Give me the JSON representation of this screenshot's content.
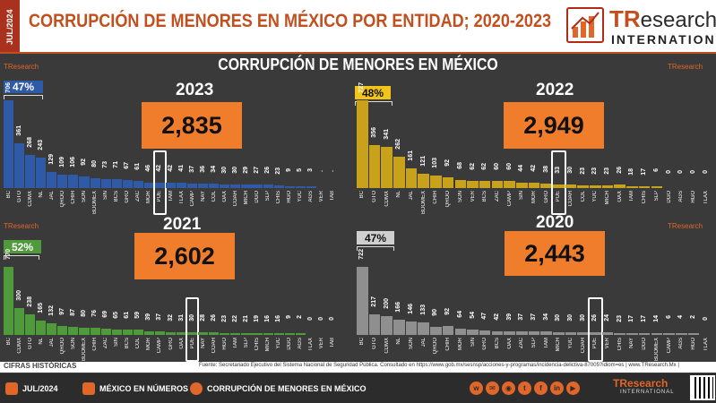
{
  "header": {
    "date_tag": "JUL/2024",
    "title": "CORRUPCIÓN DE MENORES EN MÉXICO POR ENTIDAD; 2020-2023",
    "logo_tr": "TR",
    "logo_research": "esearch",
    "logo_international": "INTERNATIONAL"
  },
  "panel_title": "CORRUPCIÓN DE MENORES EN MÉXICO",
  "mini_logo": {
    "tr": "TResearch",
    "intl": "INTERNATIONAL"
  },
  "colors": {
    "y2023": "#2f5aa8",
    "y2022": "#c9a21c",
    "y2021": "#4f9a3a",
    "y2020": "#8f8f8f",
    "accent": "#f07d2b",
    "brand": "#c2501e"
  },
  "chart_data": [
    {
      "type": "bar",
      "year": "2023",
      "total": "2,835",
      "share": "47%",
      "highlight": "PUE",
      "categories": [
        "BC",
        "GTO",
        "CDMX",
        "NL",
        "JAL",
        "QROO",
        "CHIH",
        "SON",
        "BDOMEX",
        "SIN",
        "BCS",
        "GRO",
        "ZAC",
        "MOR",
        "PUE",
        "TAM",
        "TLAX",
        "CAMP",
        "NAY",
        "COL",
        "OAX",
        "COAH",
        "MICH",
        "DGO",
        "SLP",
        "CHIS",
        "HGO",
        "YUC",
        "AGS",
        "VER",
        "TAB"
      ],
      "values": [
        706,
        361,
        268,
        243,
        129,
        109,
        106,
        92,
        80,
        73,
        71,
        67,
        61,
        46,
        42,
        42,
        41,
        37,
        36,
        34,
        30,
        30,
        29,
        27,
        26,
        23,
        9,
        5,
        3,
        null,
        null
      ]
    },
    {
      "type": "bar",
      "year": "2022",
      "total": "2,949",
      "share": "48%",
      "highlight": "PUE",
      "categories": [
        "BC",
        "GTO",
        "CDMX",
        "NL",
        "JAL",
        "BDOMEX",
        "CHIH",
        "QROO",
        "SON",
        "VER",
        "BCS",
        "ZAC",
        "CAMP",
        "SIN",
        "MOR",
        "GRO",
        "PUE",
        "COAH",
        "COL",
        "YUC",
        "MICH",
        "OAX",
        "TAM",
        "CHIS",
        "SLP",
        "DGO",
        "AGS",
        "HGO",
        "TLAX"
      ],
      "values": [
        727,
        356,
        341,
        262,
        161,
        121,
        103,
        92,
        68,
        62,
        62,
        60,
        60,
        44,
        42,
        38,
        33,
        30,
        23,
        23,
        23,
        26,
        18,
        17,
        6,
        0,
        0,
        0,
        0
      ]
    },
    {
      "type": "bar",
      "year": "2021",
      "total": "2,602",
      "share": "52%",
      "highlight": "PUE",
      "categories": [
        "BC",
        "CDMX",
        "GTO",
        "NL",
        "JAL",
        "QROO",
        "SON",
        "BDOMEX",
        "CHIH",
        "ZAC",
        "SIN",
        "BCS",
        "COL",
        "MOR",
        "CAMP",
        "GRO",
        "OAX",
        "PUE",
        "NAY",
        "COAH",
        "HGO",
        "TAM",
        "SLP",
        "CHIS",
        "MICH",
        "YUC",
        "DGO",
        "AGS",
        "TLAX",
        "VER",
        "TAB"
      ],
      "values": [
        770,
        300,
        238,
        165,
        132,
        97,
        87,
        80,
        76,
        69,
        65,
        61,
        59,
        39,
        37,
        32,
        31,
        30,
        28,
        26,
        23,
        22,
        21,
        19,
        16,
        16,
        9,
        2,
        0,
        0,
        0
      ]
    },
    {
      "type": "bar",
      "year": "2020",
      "total": "2,443",
      "share": "47%",
      "highlight": "PUE",
      "categories": [
        "BC",
        "GTO",
        "CDMX",
        "NL",
        "SON",
        "JAL",
        "QROO",
        "CHIH",
        "MOR",
        "SIN",
        "GRO",
        "BCS",
        "OAX",
        "ZAC",
        "SLP",
        "TAM",
        "MICH",
        "YUC",
        "COAH",
        "PUE",
        "VER",
        "CHIS",
        "NAY",
        "DGO",
        "BDOMEX",
        "CAMP",
        "AGS",
        "HGO",
        "TLAX"
      ],
      "values": [
        722,
        217,
        200,
        166,
        146,
        133,
        90,
        92,
        64,
        54,
        47,
        42,
        39,
        37,
        37,
        34,
        30,
        30,
        30,
        26,
        24,
        23,
        17,
        17,
        14,
        6,
        4,
        2,
        0
      ]
    }
  ],
  "footer": {
    "cifras": "CIFRAS HISTÓRICAS",
    "fuente": "Fuente: Secretariado Ejecutivo del Sistema Nacional de Seguridad Pública. Consultado en https://www.gob.mx/sesnsp/acciones-y-programas/incidencia-delictiva-87005?idiom=es | www.TResearch.Mx |",
    "b1": "JUL/2024",
    "b2": "MÉXICO EN NÚMEROS",
    "b3": "CORRUPCIÓN DE MENORES EN MÉXICO",
    "social": [
      "w",
      "✉",
      "◉",
      "t",
      "f",
      "in",
      "▶"
    ],
    "logo_tr": "TResearch",
    "logo_intl": "INTERNATIONAL"
  }
}
